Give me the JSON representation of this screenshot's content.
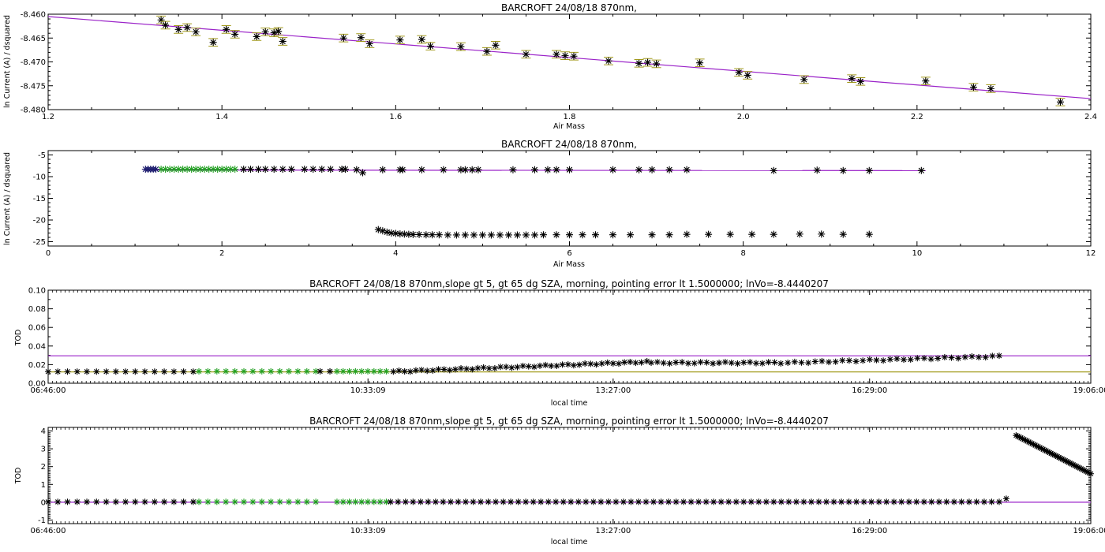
{
  "chart_data": [
    {
      "type": "scatter",
      "title": "BARCROFT 24/08/18 870nm,",
      "xlabel": "Air Mass",
      "ylabel": "ln Current (A) / dsquared",
      "xlim": [
        1.2,
        2.4
      ],
      "ylim": [
        -8.48,
        -8.46
      ],
      "xticks": [
        "1.2",
        "1.4",
        "1.6",
        "1.8",
        "2.0",
        "2.2",
        "2.4"
      ],
      "yticks": [
        "-8.460",
        "-8.465",
        "-8.470",
        "-8.475",
        "-8.480"
      ],
      "colors": {
        "points": "#000000",
        "errorbars": "#a39b1e",
        "fit": "#9a22c8"
      },
      "fit_line": {
        "x": [
          1.2,
          2.4
        ],
        "y": [
          -8.4605,
          -8.4777
        ]
      },
      "series": [
        {
          "x": [
            1.33,
            1.335,
            1.35,
            1.36,
            1.37,
            1.39,
            1.405,
            1.415,
            1.44,
            1.45,
            1.46,
            1.465,
            1.47,
            1.54,
            1.56,
            1.57,
            1.605,
            1.63,
            1.64,
            1.675,
            1.705,
            1.715,
            1.75,
            1.785,
            1.795,
            1.805,
            1.845,
            1.88,
            1.89,
            1.9,
            1.95,
            1.995,
            2.005,
            2.07,
            2.125,
            2.135,
            2.21,
            2.265,
            2.285,
            2.365
          ],
          "y": [
            -8.4612,
            -8.4623,
            -8.4632,
            -8.4628,
            -8.4637,
            -8.4659,
            -8.4632,
            -8.4642,
            -8.4647,
            -8.4637,
            -8.4639,
            -8.4636,
            -8.4657,
            -8.465,
            -8.4649,
            -8.4662,
            -8.4654,
            -8.4653,
            -8.4667,
            -8.4668,
            -8.4678,
            -8.4665,
            -8.4684,
            -8.4684,
            -8.4687,
            -8.4688,
            -8.4698,
            -8.4703,
            -8.4701,
            -8.4704,
            -8.4702,
            -8.4722,
            -8.4728,
            -8.4737,
            -8.4735,
            -8.4741,
            -8.474,
            -8.4753,
            -8.4756,
            -8.4784
          ],
          "yerr": 0.0008
        }
      ]
    },
    {
      "type": "scatter",
      "title": "BARCROFT 24/08/18 870nm,",
      "xlabel": "Air Mass",
      "ylabel": "ln Current (A) / dsquared",
      "xlim": [
        0,
        12
      ],
      "ylim": [
        -26,
        -4
      ],
      "xticks": [
        "0",
        "2",
        "4",
        "6",
        "8",
        "10",
        "12"
      ],
      "yticks": [
        "-5",
        "-10",
        "-15",
        "-20",
        "-25"
      ],
      "colors": {
        "black": "#000000",
        "green": "#22a022",
        "navy": "#1c1c6e",
        "fit": "#9a22c8"
      },
      "fit_line": {
        "x": [
          1.1,
          10.1
        ],
        "y": [
          -8.47,
          -8.62
        ]
      },
      "series": [
        {
          "name": "upper-black",
          "x": [
            2.25,
            2.33,
            2.42,
            2.5,
            2.6,
            2.7,
            2.8,
            2.95,
            3.05,
            3.15,
            3.25,
            3.38,
            3.42,
            3.55,
            3.62,
            3.85,
            4.05,
            4.08,
            4.3,
            4.55,
            4.75,
            4.8,
            4.88,
            4.95,
            5.35,
            5.6,
            5.75,
            5.85,
            6.0,
            6.5,
            6.8,
            6.95,
            7.15,
            7.35,
            8.35,
            8.85,
            9.15,
            9.45,
            10.05
          ],
          "y": [
            -8.3,
            -8.3,
            -8.3,
            -8.3,
            -8.3,
            -8.3,
            -8.3,
            -8.3,
            -8.3,
            -8.3,
            -8.3,
            -8.3,
            -8.3,
            -8.4,
            -9.1,
            -8.4,
            -8.4,
            -8.4,
            -8.4,
            -8.4,
            -8.4,
            -8.4,
            -8.4,
            -8.4,
            -8.4,
            -8.4,
            -8.4,
            -8.4,
            -8.4,
            -8.4,
            -8.4,
            -8.4,
            -8.4,
            -8.4,
            -8.6,
            -8.5,
            -8.6,
            -8.6,
            -8.6
          ]
        },
        {
          "name": "green",
          "x": [
            1.3,
            1.35,
            1.4,
            1.45,
            1.5,
            1.55,
            1.6,
            1.65,
            1.7,
            1.75,
            1.8,
            1.85,
            1.9,
            1.95,
            2.0,
            2.05,
            2.1,
            2.15
          ],
          "y": [
            -8.3,
            -8.3,
            -8.3,
            -8.3,
            -8.3,
            -8.3,
            -8.3,
            -8.3,
            -8.3,
            -8.3,
            -8.3,
            -8.3,
            -8.3,
            -8.3,
            -8.3,
            -8.3,
            -8.3,
            -8.3
          ]
        },
        {
          "name": "navy-cluster",
          "x": [
            1.12,
            1.15,
            1.18,
            1.21,
            1.24
          ],
          "y": [
            -8.3,
            -8.3,
            -8.3,
            -8.3,
            -8.3
          ]
        },
        {
          "name": "lower-black",
          "x": [
            3.8,
            3.85,
            3.9,
            3.95,
            4.0,
            4.05,
            4.1,
            4.15,
            4.2,
            4.27,
            4.35,
            4.42,
            4.5,
            4.6,
            4.7,
            4.8,
            4.9,
            5.0,
            5.1,
            5.2,
            5.3,
            5.4,
            5.5,
            5.6,
            5.7,
            5.85,
            6.0,
            6.15,
            6.3,
            6.5,
            6.7,
            6.95,
            7.15,
            7.35,
            7.6,
            7.85,
            8.1,
            8.35,
            8.65,
            8.9,
            9.15,
            9.45
          ],
          "y": [
            -22.2,
            -22.5,
            -22.8,
            -23.0,
            -23.1,
            -23.2,
            -23.25,
            -23.3,
            -23.35,
            -23.35,
            -23.4,
            -23.4,
            -23.4,
            -23.45,
            -23.45,
            -23.45,
            -23.45,
            -23.45,
            -23.45,
            -23.45,
            -23.45,
            -23.45,
            -23.45,
            -23.45,
            -23.4,
            -23.4,
            -23.4,
            -23.4,
            -23.4,
            -23.4,
            -23.4,
            -23.4,
            -23.4,
            -23.3,
            -23.3,
            -23.3,
            -23.3,
            -23.3,
            -23.25,
            -23.25,
            -23.3,
            -23.3
          ]
        }
      ]
    },
    {
      "type": "scatter",
      "title": "BARCROFT 24/08/18 870nm,slope gt 5, gt 65 dg SZA, morning, pointing error lt 1.5000000; lnVo=-8.4440207",
      "xlabel": "local time",
      "ylabel": "TOD",
      "xlim": [
        0,
        740
      ],
      "ylim": [
        0,
        0.1
      ],
      "xticks": [
        "06:46:00",
        "10:33:09",
        "13:27:00",
        "16:29:00",
        "19:06:00"
      ],
      "xtick_pos": [
        0,
        227,
        401,
        583,
        740
      ],
      "yticks": [
        "0.10",
        "0.08",
        "0.06",
        "0.04",
        "0.02",
        "0.00"
      ],
      "colors": {
        "black": "#000000",
        "green": "#22a022",
        "purple": "#9a22c8",
        "olive": "#a39b1e"
      },
      "hlines": [
        {
          "name": "purple",
          "y": 0.0295,
          "xmax": 740
        },
        {
          "name": "olive",
          "y": 0.0122,
          "xmax": 740
        }
      ],
      "series": [
        {
          "name": "early-black",
          "x0": 0,
          "x1": 103,
          "count": 16,
          "y0": 0.0125,
          "y1": 0.0125
        },
        {
          "name": "green-1",
          "x0": 107,
          "x1": 190,
          "count": 14,
          "y0": 0.0128,
          "y1": 0.0128
        },
        {
          "name": "gap-black",
          "x0": 193,
          "x1": 200,
          "count": 2,
          "y0": 0.0128,
          "y1": 0.0128
        },
        {
          "name": "green-2",
          "x0": 205,
          "x1": 240,
          "count": 9,
          "y0": 0.0128,
          "y1": 0.0128
        },
        {
          "name": "rising-black",
          "x0": 245,
          "x1": 425,
          "count": 46,
          "y0": 0.0125,
          "y1": 0.023
        },
        {
          "name": "mid-black",
          "x0": 428,
          "x1": 520,
          "count": 22,
          "y0": 0.022,
          "y1": 0.022
        },
        {
          "name": "late-black",
          "x0": 525,
          "x1": 675,
          "count": 32,
          "y0": 0.022,
          "y1": 0.029
        }
      ]
    },
    {
      "type": "scatter",
      "title": "BARCROFT 24/08/18 870nm,slope gt 5, gt 65 dg SZA, morning, pointing error lt 1.5000000; lnVo=-8.4440207",
      "xlabel": "local time",
      "ylabel": "TOD",
      "xlim": [
        0,
        740
      ],
      "ylim": [
        -1.2,
        4.2
      ],
      "xticks": [
        "06:46:00",
        "10:33:09",
        "13:27:00",
        "16:29:00",
        "19:06:00"
      ],
      "xtick_pos": [
        0,
        227,
        401,
        583,
        740
      ],
      "yticks": [
        "4",
        "3",
        "2",
        "1",
        "0",
        "-1"
      ],
      "colors": {
        "black": "#000000",
        "green": "#22a022",
        "navy": "#1c1c6e",
        "purple": "#9a22c8"
      },
      "hlines": [
        {
          "name": "purple",
          "y": 0.0,
          "xmax": 740
        }
      ],
      "series": [
        {
          "name": "early-black",
          "x0": 0,
          "x1": 103,
          "count": 16,
          "y0": 0.02,
          "y1": 0.02
        },
        {
          "name": "green-1",
          "x0": 107,
          "x1": 190,
          "count": 14,
          "y0": 0.02,
          "y1": 0.02
        },
        {
          "name": "green-2",
          "x0": 205,
          "x1": 240,
          "count": 9,
          "y0": 0.02,
          "y1": 0.02
        },
        {
          "name": "rest-black",
          "x0": 243,
          "x1": 675,
          "count": 82,
          "y0": 0.02,
          "y1": 0.02
        },
        {
          "name": "outlier",
          "x0": 680,
          "x1": 680,
          "count": 1,
          "y0": 0.2,
          "y1": 0.2
        },
        {
          "name": "evening-rise",
          "x0": 687,
          "x1": 740,
          "count": 48,
          "y0": 3.75,
          "y1": 1.6
        }
      ]
    }
  ]
}
